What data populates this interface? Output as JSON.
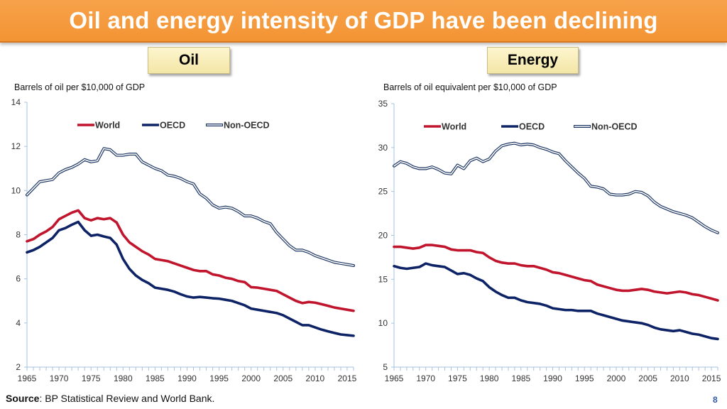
{
  "slide": {
    "title": "Oil and energy intensity of GDP have been declining",
    "tags": {
      "left": "Oil",
      "right": "Energy"
    },
    "source_label": "Source",
    "source_text": ": BP Statistical Review and World Bank.",
    "page_number": "8"
  },
  "colors": {
    "banner": "#f39434",
    "world": "#c0152c",
    "oecd": "#0d2366",
    "non_oecd": "#1f3864",
    "axis": "#a6c1e0",
    "page_number": "#2e59a8"
  },
  "chart_data": [
    {
      "type": "line",
      "title": "Oil",
      "ylabel": "Barrels of oil per $10,000 of GDP",
      "xlabel": "",
      "xlim": [
        1965,
        2016
      ],
      "ylim": [
        2,
        14
      ],
      "x_ticks": [
        1965,
        1970,
        1975,
        1980,
        1985,
        1990,
        1995,
        2000,
        2005,
        2010,
        2015
      ],
      "y_ticks": [
        2,
        4,
        6,
        8,
        10,
        12,
        14
      ],
      "grid": false,
      "legend": "top",
      "x": [
        1965,
        1966,
        1967,
        1968,
        1969,
        1970,
        1971,
        1972,
        1973,
        1974,
        1975,
        1976,
        1977,
        1978,
        1979,
        1980,
        1981,
        1982,
        1983,
        1984,
        1985,
        1986,
        1987,
        1988,
        1989,
        1990,
        1991,
        1992,
        1993,
        1994,
        1995,
        1996,
        1997,
        1998,
        1999,
        2000,
        2001,
        2002,
        2003,
        2004,
        2005,
        2006,
        2007,
        2008,
        2009,
        2010,
        2011,
        2012,
        2013,
        2014,
        2015,
        2016
      ],
      "series": [
        {
          "name": "World",
          "style": "solid",
          "values": [
            7.7,
            7.8,
            8.0,
            8.15,
            8.35,
            8.7,
            8.85,
            9.0,
            9.1,
            8.75,
            8.65,
            8.75,
            8.7,
            8.75,
            8.55,
            8.0,
            7.65,
            7.45,
            7.25,
            7.1,
            6.9,
            6.85,
            6.8,
            6.7,
            6.6,
            6.5,
            6.4,
            6.35,
            6.35,
            6.2,
            6.15,
            6.05,
            6.0,
            5.9,
            5.85,
            5.62,
            5.6,
            5.55,
            5.5,
            5.45,
            5.3,
            5.15,
            5.0,
            4.9,
            4.95,
            4.92,
            4.85,
            4.78,
            4.7,
            4.65,
            4.6,
            4.55
          ]
        },
        {
          "name": "OECD",
          "style": "solid",
          "values": [
            7.2,
            7.3,
            7.45,
            7.65,
            7.85,
            8.2,
            8.3,
            8.45,
            8.58,
            8.2,
            7.95,
            8.0,
            7.92,
            7.85,
            7.55,
            6.9,
            6.45,
            6.15,
            5.95,
            5.8,
            5.6,
            5.55,
            5.5,
            5.42,
            5.3,
            5.2,
            5.15,
            5.18,
            5.15,
            5.12,
            5.1,
            5.05,
            5.0,
            4.9,
            4.8,
            4.65,
            4.6,
            4.55,
            4.5,
            4.45,
            4.35,
            4.2,
            4.05,
            3.9,
            3.9,
            3.8,
            3.7,
            3.62,
            3.55,
            3.48,
            3.45,
            3.42
          ]
        },
        {
          "name": "Non-OECD",
          "style": "double",
          "values": [
            9.8,
            10.1,
            10.4,
            10.45,
            10.5,
            10.8,
            10.95,
            11.05,
            11.2,
            11.4,
            11.3,
            11.35,
            11.9,
            11.85,
            11.6,
            11.6,
            11.65,
            11.65,
            11.3,
            11.15,
            11.0,
            10.9,
            10.7,
            10.65,
            10.55,
            10.4,
            10.3,
            9.85,
            9.65,
            9.35,
            9.2,
            9.25,
            9.2,
            9.05,
            8.85,
            8.85,
            8.75,
            8.6,
            8.5,
            8.1,
            7.8,
            7.5,
            7.3,
            7.3,
            7.2,
            7.05,
            6.95,
            6.85,
            6.75,
            6.7,
            6.65,
            6.6
          ]
        }
      ]
    },
    {
      "type": "line",
      "title": "Energy",
      "ylabel": "Barrels of oil equivalent per $10,000 of GDP",
      "xlabel": "",
      "xlim": [
        1965,
        2016
      ],
      "ylim": [
        5,
        35
      ],
      "x_ticks": [
        1965,
        1970,
        1975,
        1980,
        1985,
        1990,
        1995,
        2000,
        2005,
        2010,
        2015
      ],
      "y_ticks": [
        5,
        10,
        15,
        20,
        25,
        30,
        35
      ],
      "grid": false,
      "legend": "top",
      "x": [
        1965,
        1966,
        1967,
        1968,
        1969,
        1970,
        1971,
        1972,
        1973,
        1974,
        1975,
        1976,
        1977,
        1978,
        1979,
        1980,
        1981,
        1982,
        1983,
        1984,
        1985,
        1986,
        1987,
        1988,
        1989,
        1990,
        1991,
        1992,
        1993,
        1994,
        1995,
        1996,
        1997,
        1998,
        1999,
        2000,
        2001,
        2002,
        2003,
        2004,
        2005,
        2006,
        2007,
        2008,
        2009,
        2010,
        2011,
        2012,
        2013,
        2014,
        2015,
        2016
      ],
      "series": [
        {
          "name": "World",
          "style": "solid",
          "values": [
            18.7,
            18.7,
            18.6,
            18.5,
            18.6,
            18.9,
            18.9,
            18.8,
            18.7,
            18.4,
            18.3,
            18.3,
            18.3,
            18.1,
            18.0,
            17.5,
            17.1,
            16.9,
            16.8,
            16.8,
            16.6,
            16.5,
            16.5,
            16.3,
            16.1,
            15.8,
            15.7,
            15.5,
            15.3,
            15.1,
            14.9,
            14.8,
            14.4,
            14.2,
            14.0,
            13.8,
            13.7,
            13.7,
            13.8,
            13.9,
            13.8,
            13.6,
            13.5,
            13.4,
            13.5,
            13.6,
            13.5,
            13.3,
            13.2,
            13.0,
            12.8,
            12.6
          ]
        },
        {
          "name": "OECD",
          "style": "solid",
          "values": [
            16.5,
            16.3,
            16.2,
            16.3,
            16.4,
            16.8,
            16.6,
            16.5,
            16.4,
            16.0,
            15.6,
            15.7,
            15.5,
            15.1,
            14.8,
            14.1,
            13.6,
            13.2,
            12.9,
            12.9,
            12.6,
            12.4,
            12.3,
            12.2,
            12.0,
            11.7,
            11.6,
            11.5,
            11.5,
            11.4,
            11.4,
            11.4,
            11.1,
            10.9,
            10.7,
            10.5,
            10.3,
            10.2,
            10.1,
            10.0,
            9.8,
            9.5,
            9.3,
            9.2,
            9.1,
            9.2,
            9.0,
            8.8,
            8.7,
            8.5,
            8.3,
            8.2
          ]
        },
        {
          "name": "Non-OECD",
          "style": "double",
          "values": [
            27.9,
            28.4,
            28.2,
            27.8,
            27.6,
            27.6,
            27.8,
            27.5,
            27.1,
            27.0,
            28.0,
            27.6,
            28.5,
            28.8,
            28.4,
            28.7,
            29.6,
            30.2,
            30.4,
            30.5,
            30.3,
            30.4,
            30.3,
            30.0,
            29.8,
            29.5,
            29.3,
            28.5,
            27.8,
            27.1,
            26.5,
            25.6,
            25.5,
            25.3,
            24.7,
            24.6,
            24.6,
            24.7,
            25.0,
            24.9,
            24.5,
            23.8,
            23.3,
            23.0,
            22.7,
            22.5,
            22.3,
            22.0,
            21.5,
            21.0,
            20.6,
            20.3
          ]
        }
      ]
    }
  ]
}
